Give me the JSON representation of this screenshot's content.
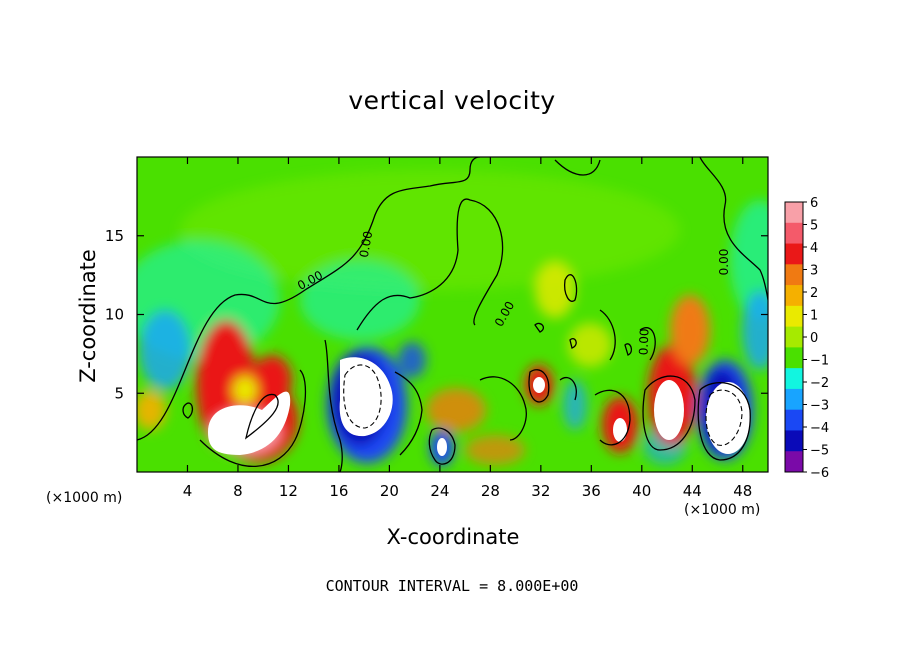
{
  "chart_data": {
    "type": "heatmap",
    "title": "vertical velocity",
    "xlabel": "X-coordinate",
    "ylabel": "Z-coordinate",
    "x_unit_label": "(×1000 m)",
    "xlim": [
      0,
      50
    ],
    "ylim": [
      0,
      20
    ],
    "x_ticks": [
      4,
      8,
      12,
      16,
      20,
      24,
      28,
      32,
      36,
      40,
      44,
      48
    ],
    "y_ticks": [
      5,
      10,
      15
    ],
    "colorbar": {
      "ticks": [
        6,
        5,
        4,
        3,
        2,
        1,
        0,
        -1,
        -2,
        -3,
        -4,
        -5,
        -6
      ],
      "colors": [
        "#f8a0a8",
        "#f45a6a",
        "#ea1818",
        "#f07a12",
        "#f5b000",
        "#eaea00",
        "#a6ea00",
        "#4ae000",
        "#12f5e0",
        "#18a4ff",
        "#1a48f4",
        "#0a0ab8",
        "#7a0aa8"
      ]
    },
    "contour_labels": [
      "0.00",
      "0.00",
      "0.00",
      "0.00",
      "0.00"
    ],
    "footer": "CONTOUR INTERVAL = 8.000E+00",
    "features": [
      {
        "x": 8.5,
        "z": 3.2,
        "value": 7
      },
      {
        "x": 18.5,
        "z": 4.5,
        "value": -7
      },
      {
        "x": 23.7,
        "z": 1.8,
        "value": -4
      },
      {
        "x": 32,
        "z": 5.5,
        "value": 4
      },
      {
        "x": 38.5,
        "z": 2.8,
        "value": 5
      },
      {
        "x": 42.5,
        "z": 4.3,
        "value": 7
      },
      {
        "x": 46.8,
        "z": 3.5,
        "value": -7
      }
    ]
  }
}
